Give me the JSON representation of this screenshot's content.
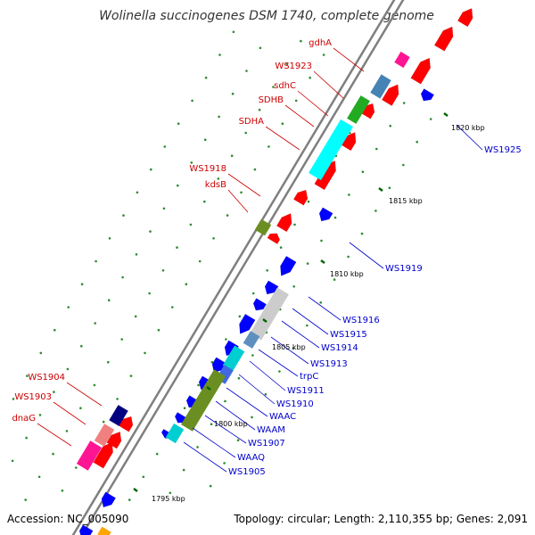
{
  "title": "Wolinella succinogenes DSM 1740, complete genome",
  "footer": {
    "accession": "Accession: NC_005090",
    "summary": "Topology: circular; Length: 2,110,355 bp; Genes: 2,091"
  },
  "colors": {
    "backbone": "#7f7f7f",
    "forward_gene": "#ff0000",
    "reverse_gene": "#0000ff",
    "label_red": "#cc0000",
    "label_blue": "#0000cc",
    "tick": "#006400",
    "dot": "#2e8b2e"
  },
  "scale_ticks": [
    "1795 kbp",
    "1800 kbp",
    "1805 kbp",
    "1810 kbp",
    "1815 kbp",
    "1820 kbp"
  ],
  "labels_forward": [
    "gdhA",
    "WS1923",
    "sdhC",
    "SDHB",
    "SDHA",
    "WS1918",
    "kdsB",
    "WS1904",
    "WS1903",
    "dnaG"
  ],
  "labels_reverse": [
    "WS1925",
    "WS1919",
    "WS1916",
    "WS1915",
    "WS1914",
    "WS1913",
    "trpC",
    "WS1911",
    "WS1910",
    "WAAC",
    "WAAM",
    "WS1907",
    "WAAQ",
    "WS1905"
  ]
}
